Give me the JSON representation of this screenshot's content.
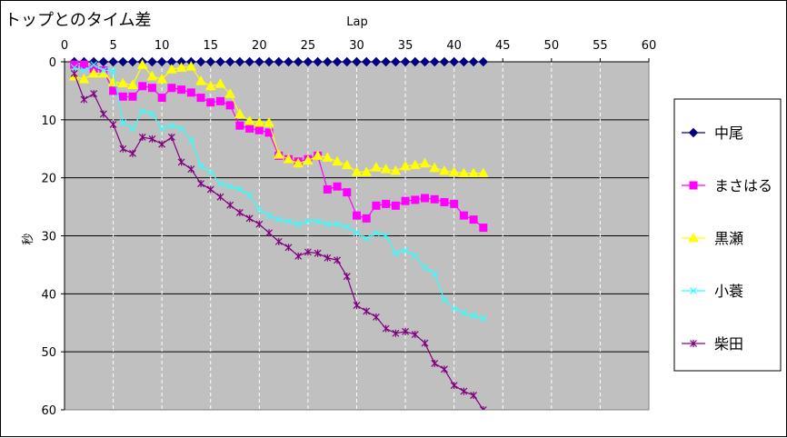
{
  "chart_data": {
    "type": "line",
    "title": "トップとのタイム差",
    "xlabel": "Lap",
    "ylabel": "秒",
    "xlim": [
      0,
      60
    ],
    "ylim": [
      0,
      60
    ],
    "y_inverted": true,
    "x_axis_position": "top",
    "x_ticks": [
      "0",
      "5",
      "10",
      "15",
      "20",
      "25",
      "30",
      "35",
      "40",
      "45",
      "50",
      "55",
      "60"
    ],
    "y_ticks": [
      "0",
      "10",
      "20",
      "30",
      "40",
      "50",
      "60"
    ],
    "grid": "horizontal solid, vertical dashed",
    "plot_background": "#c0c0c0",
    "legend_position": "right",
    "series": [
      {
        "name": "中尾",
        "color": "#000080",
        "marker": "diamond",
        "x": [
          1,
          2,
          3,
          4,
          5,
          6,
          7,
          8,
          9,
          10,
          11,
          12,
          13,
          14,
          15,
          16,
          17,
          18,
          19,
          20,
          21,
          22,
          23,
          24,
          25,
          26,
          27,
          28,
          29,
          30,
          31,
          32,
          33,
          34,
          35,
          36,
          37,
          38,
          39,
          40,
          41,
          42,
          43
        ],
        "y": [
          0,
          0,
          0,
          0,
          0,
          0,
          0,
          0,
          0,
          0,
          0,
          0,
          0,
          0,
          0,
          0,
          0,
          0,
          0,
          0,
          0,
          0,
          0,
          0,
          0,
          0,
          0,
          0,
          0,
          0,
          0,
          0,
          0,
          0,
          0,
          0,
          0,
          0,
          0,
          0,
          0,
          0,
          0
        ]
      },
      {
        "name": "まさはる",
        "color": "#ff00ff",
        "marker": "square",
        "x": [
          1,
          2,
          3,
          4,
          5,
          6,
          7,
          8,
          9,
          10,
          11,
          12,
          13,
          14,
          15,
          16,
          17,
          18,
          19,
          20,
          21,
          22,
          23,
          24,
          25,
          26,
          27,
          28,
          29,
          30,
          31,
          32,
          33,
          34,
          35,
          36,
          37,
          38,
          39,
          40,
          41,
          42,
          43
        ],
        "y": [
          0.5,
          0.5,
          1.2,
          1.5,
          5,
          6,
          6,
          4.2,
          4.5,
          6.2,
          4.5,
          4.8,
          5.3,
          6.2,
          7,
          6.8,
          7.5,
          11,
          11.5,
          11.8,
          12.2,
          16.2,
          16.8,
          17.2,
          16.8,
          16.2,
          22,
          21.5,
          22.5,
          26.5,
          27,
          24.8,
          24.5,
          24.8,
          24,
          23.8,
          23.5,
          23.7,
          24.2,
          24.5,
          26.5,
          27.2,
          28.6
        ]
      },
      {
        "name": "黒瀬",
        "color": "#ffff00",
        "marker": "triangle",
        "x": [
          1,
          2,
          3,
          4,
          5,
          6,
          7,
          8,
          9,
          10,
          11,
          12,
          13,
          14,
          15,
          16,
          17,
          18,
          19,
          20,
          21,
          22,
          23,
          24,
          25,
          26,
          27,
          28,
          29,
          30,
          31,
          32,
          33,
          34,
          35,
          36,
          37,
          38,
          39,
          40,
          41,
          42,
          43
        ],
        "y": [
          2.5,
          3,
          2,
          2,
          3.5,
          3.7,
          4,
          0.5,
          2.5,
          3,
          1.3,
          1,
          0.8,
          3.3,
          4.2,
          3.8,
          5.5,
          9,
          10.2,
          10.5,
          10.5,
          16,
          16.8,
          17.5,
          17,
          16.2,
          16.5,
          17.2,
          17.8,
          19,
          19,
          18.2,
          18.5,
          18.8,
          18,
          17.8,
          17.5,
          18.3,
          18.8,
          19,
          19.2,
          19.2,
          19.2
        ]
      },
      {
        "name": "小蓑",
        "color": "#33ffff",
        "marker": "x",
        "x": [
          1,
          2,
          3,
          4,
          5,
          6,
          7,
          8,
          9,
          10,
          11,
          12,
          13,
          14,
          15,
          16,
          17,
          18,
          19,
          20,
          21,
          22,
          23,
          24,
          25,
          26,
          27,
          28,
          29,
          30,
          31,
          32,
          33,
          34,
          35,
          36,
          37,
          38,
          39,
          40,
          41,
          42,
          43
        ],
        "y": [
          1,
          1.5,
          0.5,
          1.5,
          1.5,
          10.5,
          11.5,
          8.5,
          9,
          11.5,
          11,
          11.5,
          13.5,
          18,
          19,
          21,
          21.5,
          22,
          23,
          25.5,
          26.5,
          27.2,
          27.5,
          28,
          27.5,
          27.5,
          28,
          28,
          28.5,
          29.5,
          30.5,
          29.5,
          30,
          33,
          32.5,
          33.5,
          35.5,
          36.5,
          41,
          42.5,
          43.3,
          43.8,
          44.2
        ]
      },
      {
        "name": "柴田",
        "color": "#800080",
        "marker": "asterisk",
        "x": [
          1,
          2,
          3,
          4,
          5,
          6,
          7,
          8,
          9,
          10,
          11,
          12,
          13,
          14,
          15,
          16,
          17,
          18,
          19,
          20,
          21,
          22,
          23,
          24,
          25,
          26,
          27,
          28,
          29,
          30,
          31,
          32,
          33,
          34,
          35,
          36,
          37,
          38,
          39,
          40,
          41,
          42,
          43
        ],
        "y": [
          2,
          6.5,
          5.5,
          9,
          10.8,
          15,
          15.8,
          13,
          13.3,
          14.2,
          13,
          17.3,
          18.5,
          21,
          22,
          23.3,
          24.7,
          26,
          27,
          28,
          29.5,
          31,
          32,
          33.5,
          32.8,
          33,
          33.8,
          34.2,
          37,
          42,
          43,
          44,
          46,
          46.8,
          46.5,
          47,
          48.5,
          52,
          53,
          55.8,
          56.8,
          57.5,
          60
        ]
      }
    ]
  }
}
